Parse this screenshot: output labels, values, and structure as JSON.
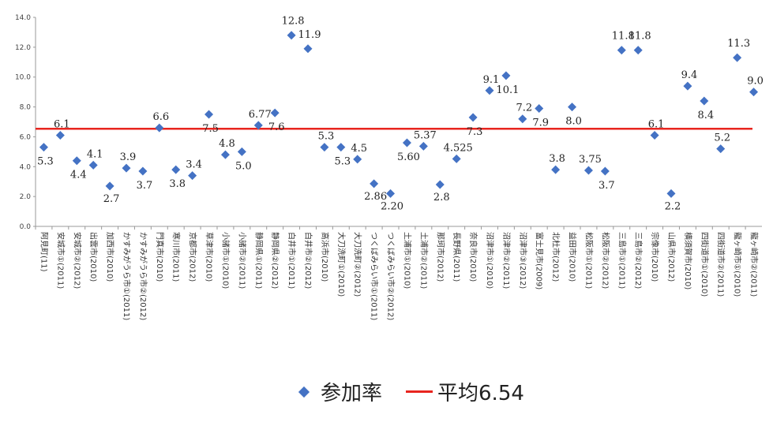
{
  "chart_data": {
    "type": "scatter",
    "ylim": [
      0,
      14
    ],
    "yticks": [
      "0.0",
      "2.0",
      "4.0",
      "6.0",
      "8.0",
      "10.0",
      "12.0",
      "14.0"
    ],
    "categories": [
      "阿見町(11)",
      "安城市①(2011)",
      "安城市②(2012)",
      "出雲市(2010)",
      "加西市(2010)",
      "かすみがうら市①(2011)",
      "かすみがうら市②(2012)",
      "門真市(2010)",
      "寒川市(2011)",
      "京都市(2012)",
      "草津市(2010)",
      "小諸市①(2010)",
      "小諸市②(2011)",
      "静岡県①(2011)",
      "静岡県②(2012)",
      "白井市①(2011)",
      "白井市②(2012)",
      "高浜市(2010)",
      "大刀洗町①(2010)",
      "大刀洗町②(2012)",
      "つくばみらい市①(2011)",
      "つくばみらい市②(2012)",
      "土浦市①(2010)",
      "土浦市②(2011)",
      "那珂市(2012)",
      "長野県(2011)",
      "奈良市(2010)",
      "沼津市①(2010)",
      "沼津市②(2011)",
      "沼津市③(2012)",
      "富士見市(2009)",
      "北杜市(2012)",
      "益田市(2010)",
      "松阪市①(2011)",
      "松阪市②(2012)",
      "三島市①(2011)",
      "三島市②(2012)",
      "宗像市(2010)",
      "山県市(2012)",
      "横須賀市(2010)",
      "四街道市①(2010)",
      "四街道市②(2011)",
      "龍ヶ崎市①(2010)",
      "龍ヶ崎市②(2011)"
    ],
    "series": [
      {
        "name": "参加率",
        "values": [
          5.3,
          6.1,
          4.4,
          4.1,
          2.7,
          3.9,
          3.7,
          6.6,
          3.8,
          3.4,
          7.5,
          4.8,
          5.0,
          6.77,
          7.6,
          12.8,
          11.9,
          5.3,
          5.3,
          4.5,
          2.86,
          2.2,
          5.6,
          5.37,
          2.8,
          4.525,
          7.3,
          9.1,
          10.1,
          7.2,
          7.9,
          3.8,
          8.0,
          3.75,
          3.7,
          11.8,
          11.8,
          6.1,
          2.2,
          9.4,
          8.4,
          5.2,
          11.3,
          9.0
        ],
        "labels": [
          "5.3",
          "6.1",
          "4.4",
          "4.1",
          "2.7",
          "3.9",
          "3.7",
          "6.6",
          "3.8",
          "3.4",
          "7.5",
          "4.8",
          "5.0",
          "6.77",
          "7.6",
          "12.8",
          "11.9",
          "5.3",
          "5.3",
          "4.5",
          "2.86",
          "2.20",
          "5.60",
          "5.37",
          "2.8",
          "4.525",
          "7.3",
          "9.1",
          "10.1",
          "7.2",
          "7.9",
          "3.8",
          "8.0",
          "3.75",
          "3.7",
          "11.8",
          "11.8",
          "6.1",
          "2.2",
          "9.4",
          "8.4",
          "5.2",
          "11.3",
          "9.0"
        ],
        "color": "#4472C4"
      }
    ],
    "average": {
      "name": "平均6.54",
      "value": 6.54,
      "color": "#E8251F"
    },
    "legend": "bottom"
  }
}
